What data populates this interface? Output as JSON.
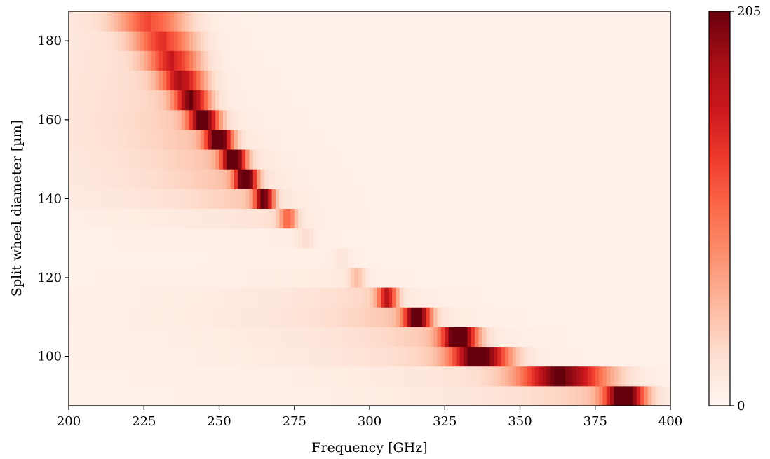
{
  "chart_data": {
    "type": "heatmap",
    "colormap": "Reds",
    "xlabel": "Frequency [GHz]",
    "ylabel": "Split wheel diameter [µm]",
    "xlim": [
      200,
      400
    ],
    "ylim": [
      87.5,
      187.5
    ],
    "xticks": [
      200,
      225,
      250,
      275,
      300,
      325,
      350,
      375,
      400
    ],
    "yticks": [
      100,
      120,
      140,
      160,
      180
    ],
    "colorbar": {
      "min": 0,
      "max": 205,
      "ticks": [
        0,
        205
      ]
    },
    "rows": [
      {
        "diameter": 90,
        "peak_ghz": 385,
        "peak_value": 205,
        "width_ghz": 4.5
      },
      {
        "diameter": 95,
        "peak_ghz": 365,
        "peak_value": 170,
        "width_ghz": 10
      },
      {
        "diameter": 100,
        "peak_ghz": 337,
        "peak_value": 190,
        "width_ghz": 6.5
      },
      {
        "diameter": 105,
        "peak_ghz": 330,
        "peak_value": 200,
        "width_ghz": 4
      },
      {
        "diameter": 110,
        "peak_ghz": 316,
        "peak_value": 195,
        "width_ghz": 3
      },
      {
        "diameter": 115,
        "peak_ghz": 306,
        "peak_value": 130,
        "width_ghz": 2.3
      },
      {
        "diameter": 120,
        "peak_ghz": 296,
        "peak_value": 35,
        "width_ghz": 2
      },
      {
        "diameter": 125,
        "peak_ghz": 291,
        "peak_value": 10,
        "width_ghz": 2
      },
      {
        "diameter": 130,
        "peak_ghz": 279,
        "peak_value": 18,
        "width_ghz": 2
      },
      {
        "diameter": 135,
        "peak_ghz": 273,
        "peak_value": 85,
        "width_ghz": 2
      },
      {
        "diameter": 140,
        "peak_ghz": 265,
        "peak_value": 175,
        "width_ghz": 2.2
      },
      {
        "diameter": 145,
        "peak_ghz": 259,
        "peak_value": 205,
        "width_ghz": 2.5
      },
      {
        "diameter": 150,
        "peak_ghz": 255,
        "peak_value": 205,
        "width_ghz": 2.8
      },
      {
        "diameter": 155,
        "peak_ghz": 250,
        "peak_value": 205,
        "width_ghz": 3
      },
      {
        "diameter": 160,
        "peak_ghz": 245,
        "peak_value": 185,
        "width_ghz": 3.5
      },
      {
        "diameter": 165,
        "peak_ghz": 241,
        "peak_value": 160,
        "width_ghz": 4
      },
      {
        "diameter": 170,
        "peak_ghz": 238,
        "peak_value": 140,
        "width_ghz": 5
      },
      {
        "diameter": 175,
        "peak_ghz": 235,
        "peak_value": 120,
        "width_ghz": 6
      },
      {
        "diameter": 180,
        "peak_ghz": 232,
        "peak_value": 105,
        "width_ghz": 7
      },
      {
        "diameter": 185,
        "peak_ghz": 228,
        "peak_value": 95,
        "width_ghz": 8
      }
    ]
  }
}
